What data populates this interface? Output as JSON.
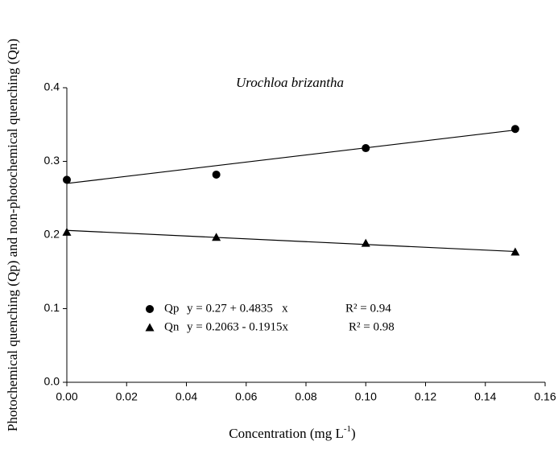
{
  "chart_data": {
    "type": "scatter",
    "title": "Urochloa brizantha",
    "x_label": [
      "Concentration (mg L",
      "-1",
      ")"
    ],
    "y_label": "Photochemical quenching (Qp) and non-photochemical quenching (Qn)",
    "x": [
      0,
      0.05,
      0.1,
      0.15
    ],
    "series": [
      {
        "name": "Qp",
        "marker": "circle",
        "color": "#000000",
        "values": [
          0.275,
          0.282,
          0.318,
          0.344
        ],
        "fit": {
          "intercept": 0.27,
          "slope": 0.4835
        },
        "equation": "y = 0.27 + 0.4835   x",
        "r2": "R² = 0.94"
      },
      {
        "name": "Qn",
        "marker": "triangle",
        "color": "#000000",
        "values": [
          0.204,
          0.197,
          0.189,
          0.177
        ],
        "fit": {
          "intercept": 0.2063,
          "slope": -0.1915
        },
        "equation": "y = 0.2063 - 0.1915x",
        "r2": "R² = 0.98"
      }
    ],
    "xlim": [
      0,
      0.16
    ],
    "ylim": [
      0,
      0.4
    ],
    "xticks": [
      {
        "value": 0,
        "label": "0.00"
      },
      {
        "value": 0.02,
        "label": "0.02"
      },
      {
        "value": 0.04,
        "label": "0.04"
      },
      {
        "value": 0.06,
        "label": "0.06"
      },
      {
        "value": 0.08,
        "label": "0.08"
      },
      {
        "value": 0.1,
        "label": "0.10"
      },
      {
        "value": 0.12,
        "label": "0.12"
      },
      {
        "value": 0.14,
        "label": "0.14"
      },
      {
        "value": 0.16,
        "label": "0.16"
      }
    ],
    "yticks": [
      {
        "value": 0,
        "label": "0.0"
      },
      {
        "value": 0.1,
        "label": "0.1"
      },
      {
        "value": 0.2,
        "label": "0.2"
      },
      {
        "value": 0.3,
        "label": "0.3"
      },
      {
        "value": 0.4,
        "label": "0.4"
      }
    ]
  }
}
